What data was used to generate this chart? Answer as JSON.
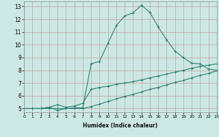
{
  "xlabel": "Humidex (Indice chaleur)",
  "ylabel": "",
  "xlim": [
    0,
    23
  ],
  "ylim": [
    4.7,
    13.4
  ],
  "xticks": [
    0,
    1,
    2,
    3,
    4,
    5,
    6,
    7,
    8,
    9,
    10,
    11,
    12,
    13,
    14,
    15,
    16,
    17,
    18,
    19,
    20,
    21,
    22,
    23
  ],
  "yticks": [
    5,
    6,
    7,
    8,
    9,
    10,
    11,
    12,
    13
  ],
  "background_color": "#cce8e4",
  "grid_color": "#c0a0a0",
  "line_color": "#2e7d6e",
  "line1_x": [
    0,
    1,
    2,
    3,
    4,
    5,
    6,
    7,
    8,
    9,
    10,
    11,
    12,
    13,
    14,
    15,
    16,
    17,
    18,
    19,
    20,
    21,
    22,
    23
  ],
  "line1_y": [
    5.0,
    5.0,
    5.0,
    5.1,
    4.85,
    5.0,
    5.05,
    5.05,
    8.5,
    8.7,
    10.1,
    11.5,
    12.25,
    12.5,
    13.1,
    12.55,
    11.4,
    10.4,
    9.5,
    9.0,
    8.55,
    8.5,
    8.1,
    8.0
  ],
  "line2_x": [
    0,
    1,
    2,
    3,
    4,
    5,
    6,
    7,
    8,
    9,
    10,
    11,
    12,
    13,
    14,
    15,
    16,
    17,
    18,
    19,
    20,
    21,
    22,
    23
  ],
  "line2_y": [
    5.0,
    5.0,
    5.0,
    5.1,
    5.3,
    5.1,
    5.2,
    5.4,
    6.5,
    6.65,
    6.75,
    6.9,
    7.0,
    7.1,
    7.25,
    7.4,
    7.55,
    7.7,
    7.85,
    8.0,
    8.15,
    8.3,
    8.4,
    8.5
  ],
  "line3_x": [
    0,
    1,
    2,
    3,
    4,
    5,
    6,
    7,
    8,
    9,
    10,
    11,
    12,
    13,
    14,
    15,
    16,
    17,
    18,
    19,
    20,
    21,
    22,
    23
  ],
  "line3_y": [
    5.0,
    5.0,
    5.0,
    5.0,
    5.0,
    5.0,
    5.0,
    5.0,
    5.15,
    5.35,
    5.55,
    5.75,
    5.95,
    6.1,
    6.3,
    6.5,
    6.65,
    6.85,
    7.05,
    7.2,
    7.4,
    7.6,
    7.75,
    7.95
  ]
}
